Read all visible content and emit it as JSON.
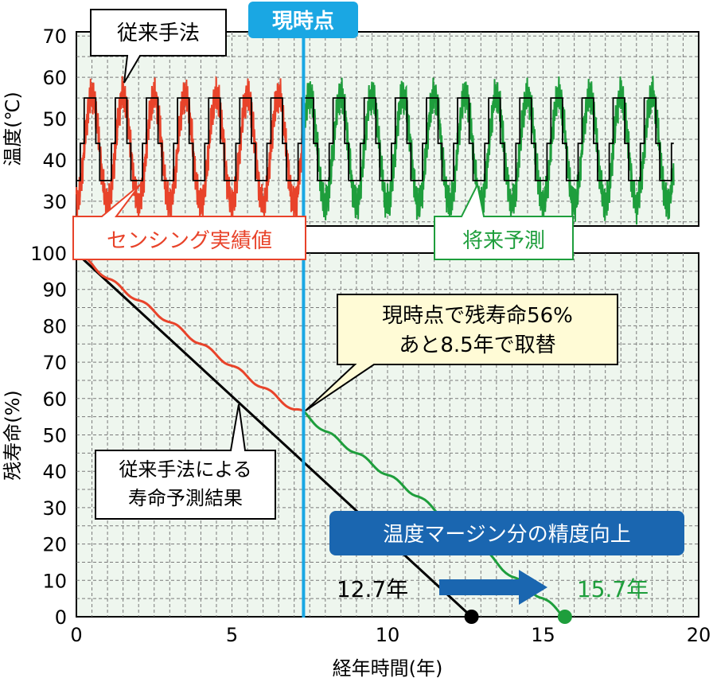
{
  "colors": {
    "sensing": "#e8432a",
    "forecast": "#1e9e3c",
    "conventional": "#000000",
    "now_line": "#1aa7e3",
    "banner": "#1a66b0",
    "plot_bg": "#eef6ee",
    "grid": "#7a7a7a",
    "callout_yellow": "#fffbd6"
  },
  "chart_data": [
    {
      "type": "line",
      "ylabel": "温度(℃)",
      "ylim": [
        24,
        71
      ],
      "yticks": [
        30,
        40,
        50,
        60,
        70
      ],
      "xlim": [
        0,
        20
      ],
      "grid": true,
      "waveform": {
        "cycles_per_year": 1,
        "sensing_range": [
          27,
          58
        ],
        "conventional_steps": [
          35,
          44,
          55,
          44
        ],
        "period": 1.0
      },
      "series": [
        {
          "name": "センシング実績値",
          "x_range": [
            0,
            7.3
          ],
          "color": "sensing"
        },
        {
          "name": "将来予測",
          "x_range": [
            7.3,
            19.2
          ],
          "color": "forecast"
        },
        {
          "name": "従来手法",
          "x_range": [
            0,
            19.2
          ],
          "color": "conventional"
        }
      ],
      "labels": {
        "conventional": "従来手法",
        "sensing": "センシング実績値",
        "forecast": "将来予測"
      }
    },
    {
      "type": "line",
      "xlabel": "経年時間(年)",
      "ylabel": "残寿命(%)",
      "xlim": [
        0,
        20
      ],
      "ylim": [
        0,
        100
      ],
      "xticks": [
        0,
        5,
        10,
        15,
        20
      ],
      "yticks": [
        0,
        10,
        20,
        30,
        40,
        50,
        60,
        70,
        80,
        90,
        100
      ],
      "grid": true,
      "series": [
        {
          "name": "従来手法",
          "x": [
            0,
            12.7
          ],
          "y": [
            100,
            0
          ],
          "color": "conventional"
        },
        {
          "name": "センシング実績値",
          "x": [
            0,
            0.5,
            1.0,
            1.5,
            2.0,
            2.5,
            3.0,
            3.5,
            4.0,
            4.5,
            5.0,
            5.5,
            6.0,
            6.5,
            7.0,
            7.3
          ],
          "y": [
            100,
            97,
            93,
            90,
            87,
            84,
            81,
            78,
            75,
            72,
            69,
            66,
            63,
            60,
            57,
            56
          ],
          "color": "sensing"
        },
        {
          "name": "将来予測",
          "x": [
            7.3,
            8.0,
            9.0,
            10.0,
            11.0,
            12.0,
            13.0,
            14.0,
            15.0,
            15.7
          ],
          "y": [
            56,
            51,
            45,
            39,
            33,
            26,
            19,
            11,
            5,
            0
          ],
          "color": "forecast"
        }
      ],
      "endpoints": [
        {
          "x": 12.7,
          "y": 0,
          "label": "12.7年",
          "color": "conventional"
        },
        {
          "x": 15.7,
          "y": 0,
          "label": "15.7年",
          "color": "forecast"
        }
      ],
      "annotations": {
        "current_point_line1": "現時点で残寿命56%",
        "current_point_line2": "あと8.5年で取替",
        "conventional_result_line1": "従来手法による",
        "conventional_result_line2": "寿命予測結果",
        "improvement": "温度マージン分の精度向上"
      }
    }
  ],
  "now_marker": {
    "x": 7.3,
    "label": "現時点"
  }
}
